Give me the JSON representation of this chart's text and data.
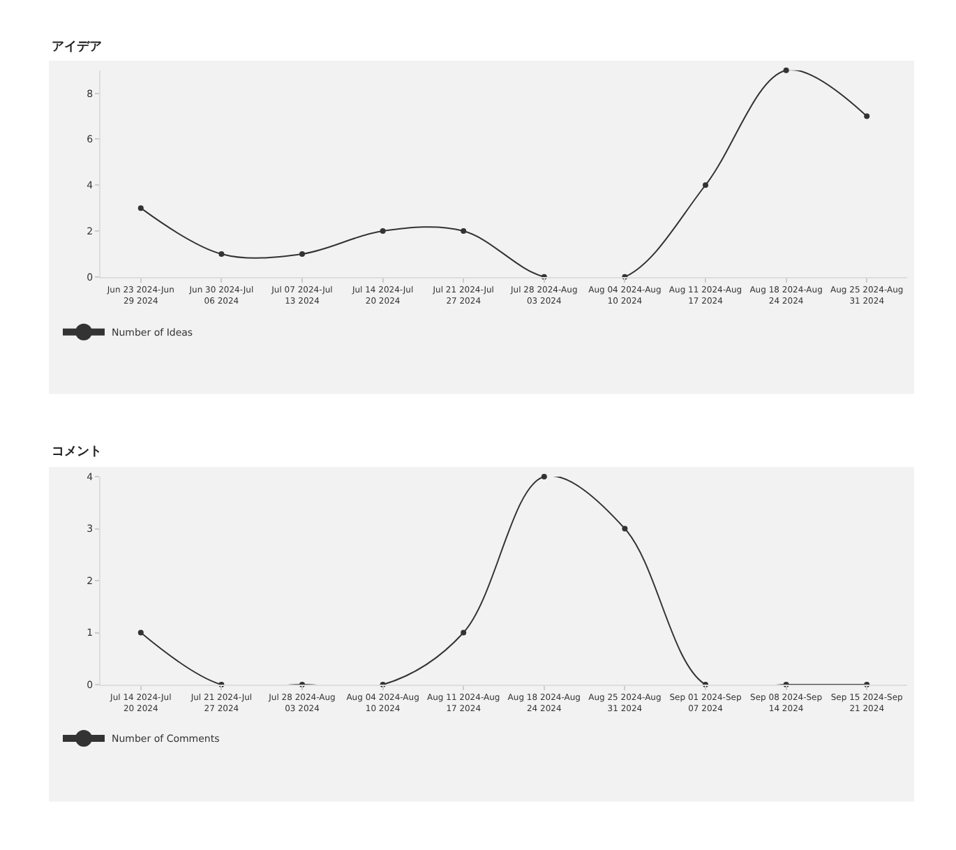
{
  "chart_data": [
    {
      "type": "line",
      "title": "アイデア",
      "categories": [
        "Jun 23 2024-Jun 29 2024",
        "Jun 30 2024-Jul 06 2024",
        "Jul 07 2024-Jul 13 2024",
        "Jul 14 2024-Jul 20 2024",
        "Jul 21 2024-Jul 27 2024",
        "Jul 28 2024-Aug 03 2024",
        "Aug 04 2024-Aug 10 2024",
        "Aug 11 2024-Aug 17 2024",
        "Aug 18 2024-Aug 24 2024",
        "Aug 25 2024-Aug 31 2024"
      ],
      "series": [
        {
          "name": "Number of Ideas",
          "color": "#333333",
          "values": [
            3,
            1,
            1,
            2,
            2,
            0,
            0,
            4,
            9,
            7
          ]
        }
      ],
      "ylim": [
        0,
        9
      ],
      "yticks": [
        0,
        2,
        4,
        6,
        8
      ],
      "marker": "circle",
      "line_style": "solid",
      "grid": false,
      "legend": "bottom left"
    },
    {
      "type": "line",
      "title": "コメント",
      "categories": [
        "Jul 14 2024-Jul 20 2024",
        "Jul 21 2024-Jul 27 2024",
        "Jul 28 2024-Aug 03 2024",
        "Aug 04 2024-Aug 10 2024",
        "Aug 11 2024-Aug 17 2024",
        "Aug 18 2024-Aug 24 2024",
        "Aug 25 2024-Aug 31 2024",
        "Sep 01 2024-Sep 07 2024",
        "Sep 08 2024-Sep 14 2024",
        "Sep 15 2024-Sep 21 2024"
      ],
      "series": [
        {
          "name": "Number of Comments",
          "color": "#333333",
          "values": [
            1,
            0,
            0,
            0,
            1,
            4,
            3,
            0,
            0,
            0
          ]
        }
      ],
      "ylim": [
        0,
        4
      ],
      "yticks": [
        0,
        1,
        2,
        3,
        4
      ],
      "marker": "circle",
      "line_style": "solid",
      "grid": false,
      "legend": "bottom left"
    }
  ]
}
